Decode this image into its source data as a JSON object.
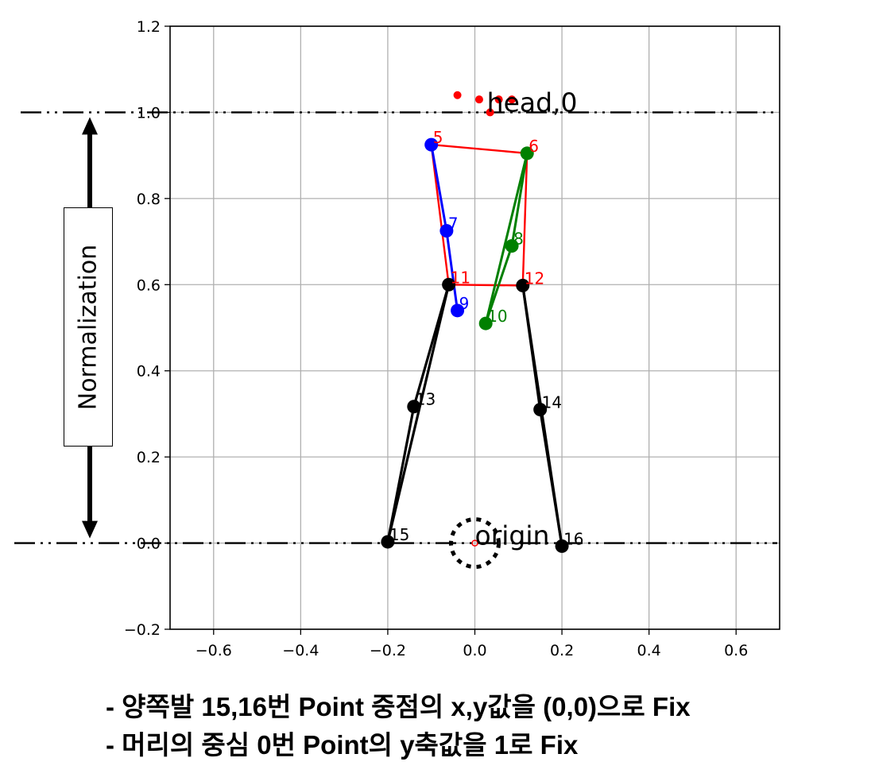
{
  "chart_data": {
    "type": "scatter",
    "title": "",
    "xlabel": "",
    "ylabel": "",
    "xlim": [
      -0.7,
      0.7
    ],
    "ylim": [
      -0.2,
      1.2
    ],
    "xticks": [
      -0.6,
      -0.4,
      -0.2,
      0.0,
      0.2,
      0.4,
      0.6
    ],
    "yticks": [
      -0.2,
      0.0,
      0.2,
      0.4,
      0.6,
      0.8,
      1.0,
      1.2
    ],
    "xtick_labels": [
      "−0.6",
      "−0.4",
      "−0.2",
      "0.0",
      "0.2",
      "0.4",
      "0.6"
    ],
    "ytick_labels": [
      "−0.2",
      "0.0",
      "0.2",
      "0.4",
      "0.6",
      "0.8",
      "1.0",
      "1.2"
    ],
    "grid": true,
    "keypoints": [
      {
        "id": "5",
        "x": -0.1,
        "y": 0.925,
        "color": "#0000ff",
        "label_color": "#ff0000"
      },
      {
        "id": "6",
        "x": 0.12,
        "y": 0.905,
        "color": "#008000",
        "label_color": "#ff0000"
      },
      {
        "id": "7",
        "x": -0.065,
        "y": 0.725,
        "color": "#0000ff",
        "label_color": "#0000ff"
      },
      {
        "id": "8",
        "x": 0.085,
        "y": 0.69,
        "color": "#008000",
        "label_color": "#008000"
      },
      {
        "id": "9",
        "x": -0.04,
        "y": 0.54,
        "color": "#0000ff",
        "label_color": "#0000ff"
      },
      {
        "id": "10",
        "x": 0.025,
        "y": 0.51,
        "color": "#008000",
        "label_color": "#008000"
      },
      {
        "id": "11",
        "x": -0.06,
        "y": 0.6,
        "color": "#000000",
        "label_color": "#ff0000"
      },
      {
        "id": "12",
        "x": 0.11,
        "y": 0.598,
        "color": "#000000",
        "label_color": "#ff0000"
      },
      {
        "id": "13",
        "x": -0.14,
        "y": 0.317,
        "color": "#000000",
        "label_color": "#000000"
      },
      {
        "id": "14",
        "x": 0.15,
        "y": 0.31,
        "color": "#000000",
        "label_color": "#000000"
      },
      {
        "id": "15",
        "x": -0.2,
        "y": 0.003,
        "color": "#000000",
        "label_color": "#000000"
      },
      {
        "id": "16",
        "x": 0.2,
        "y": -0.007,
        "color": "#000000",
        "label_color": "#000000"
      }
    ],
    "head_points": [
      {
        "x": -0.04,
        "y": 1.04
      },
      {
        "x": 0.01,
        "y": 1.03
      },
      {
        "x": 0.035,
        "y": 1.0
      },
      {
        "x": 0.055,
        "y": 1.03
      },
      {
        "x": 0.085,
        "y": 1.03
      }
    ],
    "head_label": "head,0",
    "origin_point": {
      "x": 0.0,
      "y": 0.0
    },
    "origin_label": "origin",
    "torso_edges": [
      [
        "5",
        "6"
      ],
      [
        "6",
        "12"
      ],
      [
        "12",
        "11"
      ],
      [
        "11",
        "5"
      ]
    ],
    "left_arm_edges": [
      [
        "5",
        "7"
      ],
      [
        "7",
        "9"
      ]
    ],
    "right_arm_edges": [
      [
        "6",
        "8"
      ],
      [
        "8",
        "10"
      ],
      [
        "6",
        "10"
      ]
    ],
    "leg_edges": [
      [
        "11",
        "13"
      ],
      [
        "13",
        "15"
      ],
      [
        "11",
        "15"
      ],
      [
        "12",
        "14"
      ],
      [
        "14",
        "16"
      ],
      [
        "12",
        "16"
      ]
    ],
    "colors": {
      "torso": "#ff0000",
      "left_arm": "#0000ff",
      "right_arm": "#008000",
      "legs": "#000000",
      "head": "#ff0000",
      "grid": "#b0b0b0"
    }
  },
  "annotations": {
    "normalization_label": "Normalization",
    "reference_lines_y": [
      1.0,
      0.0
    ]
  },
  "captions": [
    "- 양쪽발 15,16번 Point 중점의 x,y값을 (0,0)으로 Fix",
    "- 머리의 중심 0번 Point의 y축값을 1로 Fix"
  ]
}
